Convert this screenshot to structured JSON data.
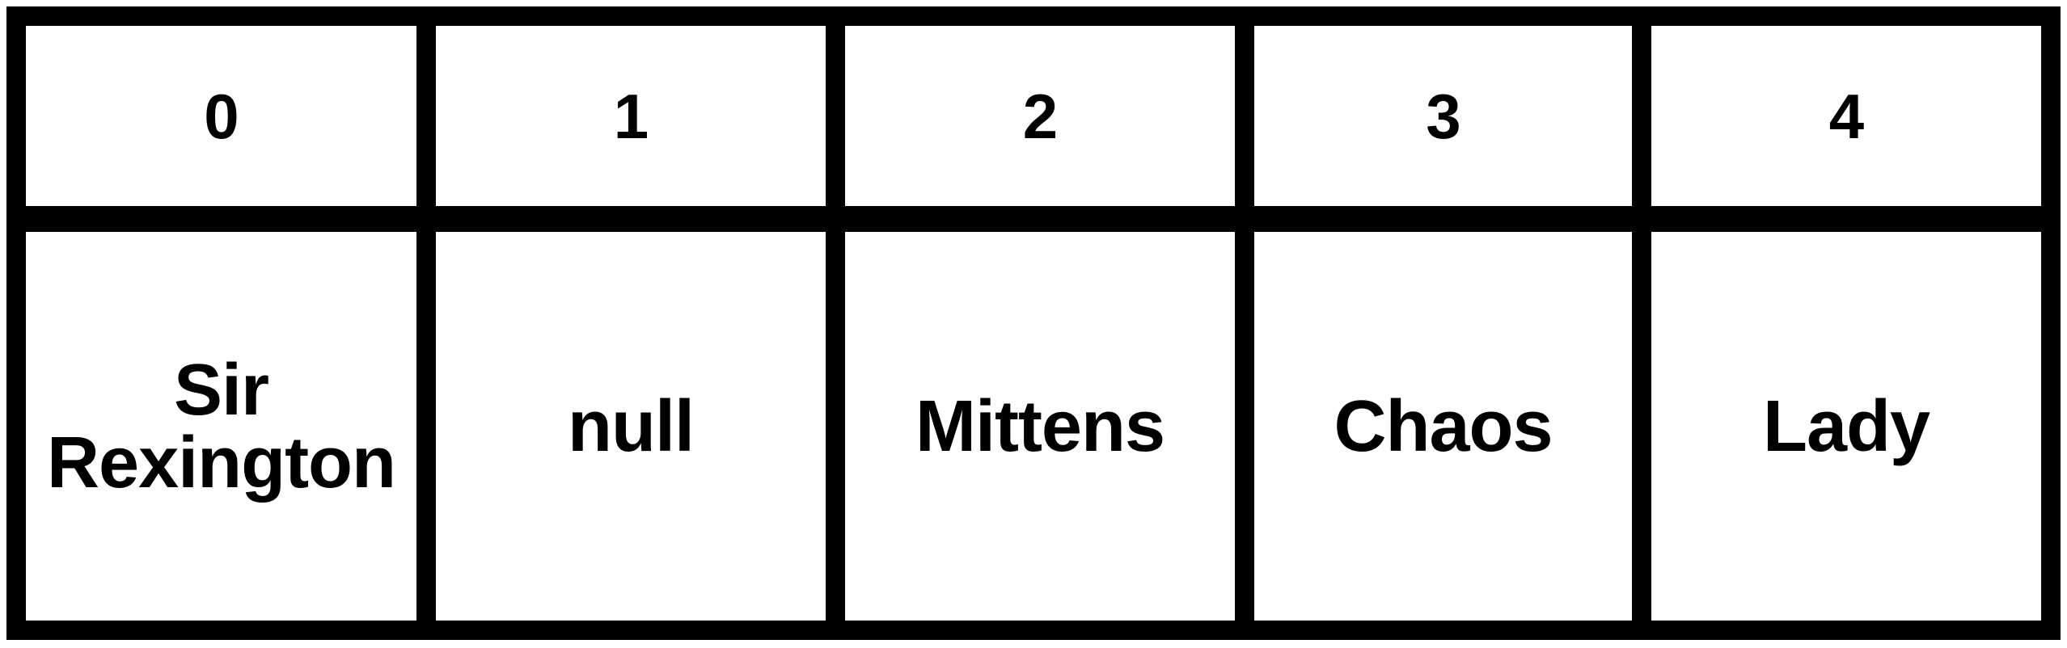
{
  "array": {
    "indices": [
      "0",
      "1",
      "2",
      "3",
      "4"
    ],
    "values": [
      "Sir Rexington",
      "null",
      "Mittens",
      "Chaos",
      "Lady"
    ]
  },
  "colors": {
    "border": "#000000",
    "background": "#ffffff",
    "text": "#000000"
  }
}
